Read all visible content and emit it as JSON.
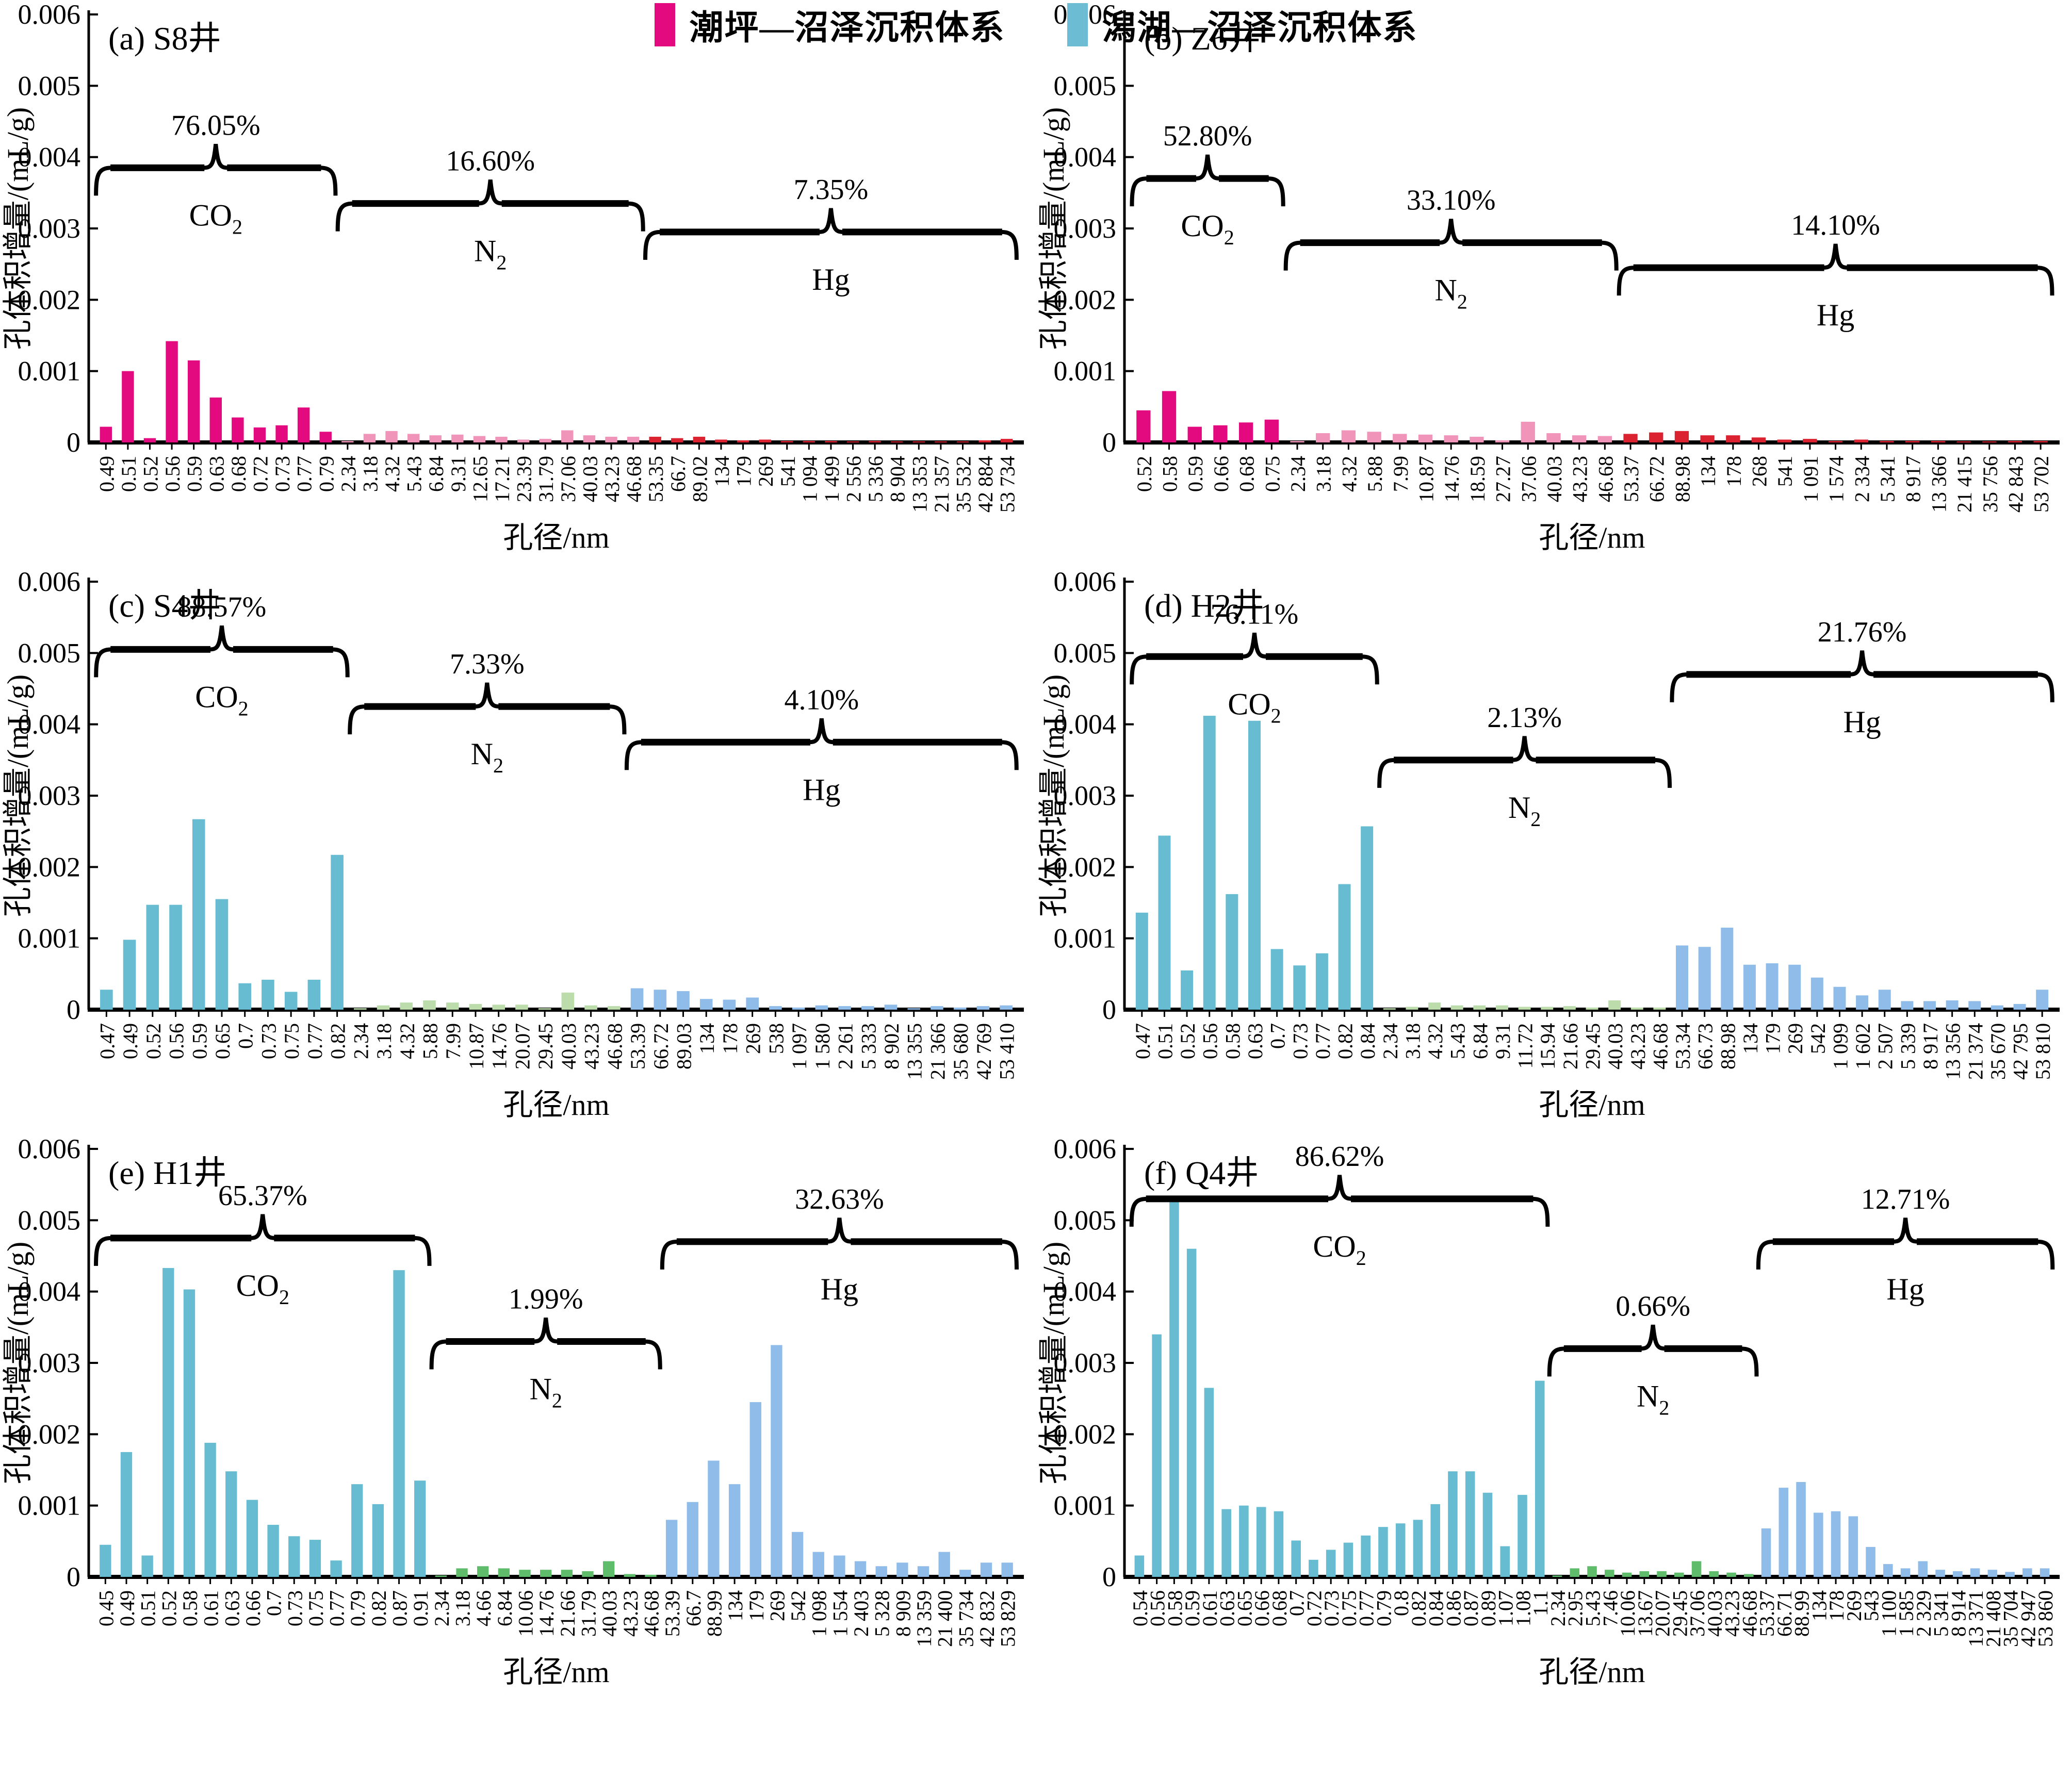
{
  "figure": {
    "ylabel": "孔体积增量/(mL/g)",
    "xlabel": "孔径/nm",
    "background": "#ffffff",
    "axis_color": "#000000"
  },
  "legend": {
    "items": [
      {
        "label": "潮坪—沼泽沉积体系",
        "color": "#E3097E"
      },
      {
        "label": "潟湖—沼泽沉积体系",
        "color": "#6CBDD4"
      }
    ]
  },
  "chart_data": [
    {
      "panel": "a",
      "title": "(a) S8井",
      "type": "bar",
      "xlabel": "孔径/nm",
      "ylabel": "孔体积增量/(mL/g)",
      "ylim": [
        0,
        0.006
      ],
      "yticks": [
        0,
        0.001,
        0.002,
        0.003,
        0.004,
        0.005,
        0.006
      ],
      "ytick_labels": [
        "0",
        "0.001",
        "0.002",
        "0.003",
        "0.004",
        "0.005",
        "0.006"
      ],
      "categories": [
        "0.49",
        "0.51",
        "0.52",
        "0.56",
        "0.59",
        "0.63",
        "0.68",
        "0.72",
        "0.73",
        "0.77",
        "0.79",
        "2.34",
        "3.18",
        "4.32",
        "5.43",
        "6.84",
        "9.31",
        "12.65",
        "17.21",
        "23.39",
        "31.79",
        "37.06",
        "40.03",
        "43.23",
        "46.68",
        "53.35",
        "66.7",
        "89.02",
        "134",
        "179",
        "269",
        "541",
        "1 094",
        "1 499",
        "2 556",
        "5 336",
        "8 904",
        "13 353",
        "21 357",
        "35 532",
        "42 884",
        "53 734"
      ],
      "values": [
        0.00022,
        0.001,
        6e-05,
        0.00142,
        0.00115,
        0.00063,
        0.00035,
        0.00021,
        0.00024,
        0.00049,
        0.00015,
        2e-05,
        0.00012,
        0.00016,
        0.00012,
        0.0001,
        0.00011,
        9e-05,
        8e-05,
        4e-05,
        5e-05,
        0.00017,
        0.0001,
        8e-05,
        8e-05,
        8e-05,
        6e-05,
        8e-05,
        4e-05,
        3e-05,
        4e-05,
        2e-05,
        2e-05,
        2e-05,
        1e-05,
        2e-05,
        1e-05,
        1e-05,
        1e-05,
        1e-05,
        3e-05,
        5e-05
      ],
      "segments": [
        {
          "gas": "CO2",
          "percent": "76.05%",
          "from": 0,
          "to": 10,
          "bar_color": "#E3097E",
          "brace_y": 0.00385
        },
        {
          "gas": "N2",
          "percent": "16.60%",
          "from": 11,
          "to": 24,
          "bar_color": "#F094BA",
          "brace_y": 0.00335
        },
        {
          "gas": "Hg",
          "percent": "7.35%",
          "from": 25,
          "to": 41,
          "bar_color": "#DB2230",
          "brace_y": 0.00295
        }
      ]
    },
    {
      "panel": "b",
      "title": "(b) Z6井",
      "type": "bar",
      "xlabel": "孔径/nm",
      "ylabel": "孔体积增量/(mL/g)",
      "ylim": [
        0,
        0.006
      ],
      "yticks": [
        0,
        0.001,
        0.002,
        0.003,
        0.004,
        0.005,
        0.006
      ],
      "ytick_labels": [
        "0",
        "0.001",
        "0.002",
        "0.003",
        "0.004",
        "0.005",
        "0.006"
      ],
      "categories": [
        "0.52",
        "0.58",
        "0.59",
        "0.66",
        "0.68",
        "0.75",
        "2.34",
        "3.18",
        "4.32",
        "5.88",
        "7.99",
        "10.87",
        "14.76",
        "18.59",
        "27.27",
        "37.06",
        "40.03",
        "43.23",
        "46.68",
        "53.37",
        "66.72",
        "88.98",
        "134",
        "178",
        "268",
        "541",
        "1 091",
        "1 574",
        "2 334",
        "5 341",
        "8 917",
        "13 366",
        "21 415",
        "35 756",
        "42 843",
        "53 702"
      ],
      "values": [
        0.00045,
        0.00072,
        0.00022,
        0.00024,
        0.00028,
        0.00032,
        2e-05,
        0.00013,
        0.00017,
        0.00015,
        0.00012,
        0.00011,
        0.0001,
        8e-05,
        3e-05,
        0.00029,
        0.00013,
        0.0001,
        9e-05,
        0.00012,
        0.00014,
        0.00016,
        0.0001,
        0.0001,
        7e-05,
        4e-05,
        5e-05,
        2e-05,
        4e-05,
        2e-05,
        2e-05,
        2e-05,
        1e-05,
        1e-05,
        2e-05,
        2e-05
      ],
      "segments": [
        {
          "gas": "CO2",
          "percent": "52.80%",
          "from": 0,
          "to": 5,
          "bar_color": "#E3097E",
          "brace_y": 0.0037
        },
        {
          "gas": "N2",
          "percent": "33.10%",
          "from": 6,
          "to": 18,
          "bar_color": "#F094BA",
          "brace_y": 0.0028
        },
        {
          "gas": "Hg",
          "percent": "14.10%",
          "from": 19,
          "to": 35,
          "bar_color": "#DB2230",
          "brace_y": 0.00245
        }
      ]
    },
    {
      "panel": "c",
      "title": "(c) S4井",
      "type": "bar",
      "xlabel": "孔径/nm",
      "ylabel": "孔体积增量/(mL/g)",
      "ylim": [
        0,
        0.006
      ],
      "yticks": [
        0,
        0.001,
        0.002,
        0.003,
        0.004,
        0.005,
        0.006
      ],
      "ytick_labels": [
        "0",
        "0.001",
        "0.002",
        "0.003",
        "0.004",
        "0.005",
        "0.006"
      ],
      "categories": [
        "0.47",
        "0.49",
        "0.52",
        "0.56",
        "0.59",
        "0.65",
        "0.7",
        "0.73",
        "0.75",
        "0.77",
        "0.82",
        "2.34",
        "3.18",
        "4.32",
        "5.88",
        "7.99",
        "10.87",
        "14.76",
        "20.07",
        "29.45",
        "40.03",
        "43.23",
        "46.68",
        "53.39",
        "66.72",
        "89.03",
        "134",
        "178",
        "269",
        "538",
        "1 097",
        "1 580",
        "2 261",
        "5 333",
        "8 902",
        "13 355",
        "21 366",
        "35 680",
        "42 769",
        "53 410"
      ],
      "values": [
        0.00028,
        0.00098,
        0.00147,
        0.00147,
        0.00267,
        0.00155,
        0.00037,
        0.00042,
        0.00025,
        0.00042,
        0.00217,
        2e-05,
        6e-05,
        0.0001,
        0.00013,
        0.0001,
        8e-05,
        7e-05,
        7e-05,
        2e-05,
        0.00024,
        6e-05,
        5e-05,
        0.0003,
        0.00028,
        0.00026,
        0.00015,
        0.00014,
        0.00017,
        5e-05,
        3e-05,
        6e-05,
        5e-05,
        5e-05,
        7e-05,
        2e-05,
        5e-05,
        3e-05,
        5e-05,
        6e-05
      ],
      "segments": [
        {
          "gas": "CO2",
          "percent": "88.57%",
          "from": 0,
          "to": 10,
          "bar_color": "#67BCD2",
          "brace_y": 0.00505
        },
        {
          "gas": "N2",
          "percent": "7.33%",
          "from": 11,
          "to": 22,
          "bar_color": "#BCDCAC",
          "brace_y": 0.00425
        },
        {
          "gas": "Hg",
          "percent": "4.10%",
          "from": 23,
          "to": 39,
          "bar_color": "#8FBCE8",
          "brace_y": 0.00375
        }
      ]
    },
    {
      "panel": "d",
      "title": "(d) H2井",
      "type": "bar",
      "xlabel": "孔径/nm",
      "ylabel": "孔体积增量/(mL/g)",
      "ylim": [
        0,
        0.006
      ],
      "yticks": [
        0,
        0.001,
        0.002,
        0.003,
        0.004,
        0.005,
        0.006
      ],
      "ytick_labels": [
        "0",
        "0.001",
        "0.002",
        "0.003",
        "0.004",
        "0.005",
        "0.006"
      ],
      "categories": [
        "0.47",
        "0.51",
        "0.52",
        "0.56",
        "0.58",
        "0.63",
        "0.7",
        "0.73",
        "0.77",
        "0.82",
        "0.84",
        "2.34",
        "3.18",
        "4.32",
        "5.43",
        "6.84",
        "9.31",
        "11.72",
        "15.94",
        "21.66",
        "29.45",
        "40.03",
        "43.23",
        "46.68",
        "53.34",
        "66.73",
        "88.98",
        "134",
        "179",
        "269",
        "542",
        "1 099",
        "1 602",
        "2 507",
        "5 339",
        "8 917",
        "13 356",
        "21 374",
        "35 670",
        "42 795",
        "53 810"
      ],
      "values": [
        0.00136,
        0.00244,
        0.00055,
        0.00412,
        0.00162,
        0.00405,
        0.00085,
        0.00062,
        0.00079,
        0.00176,
        0.00257,
        2e-05,
        4e-05,
        0.0001,
        6e-05,
        6e-05,
        6e-05,
        4e-05,
        4e-05,
        5e-05,
        3e-05,
        0.00013,
        3e-05,
        3e-05,
        0.0009,
        0.00088,
        0.00115,
        0.00063,
        0.00065,
        0.00063,
        0.00045,
        0.00032,
        0.0002,
        0.00028,
        0.00012,
        0.00012,
        0.00013,
        0.00012,
        6e-05,
        8e-05,
        0.00028
      ],
      "segments": [
        {
          "gas": "CO2",
          "percent": "76.11%",
          "from": 0,
          "to": 10,
          "bar_color": "#67BCD2",
          "brace_y": 0.00495
        },
        {
          "gas": "N2",
          "percent": "2.13%",
          "from": 11,
          "to": 23,
          "bar_color": "#BCDCAC",
          "brace_y": 0.0035
        },
        {
          "gas": "Hg",
          "percent": "21.76%",
          "from": 24,
          "to": 40,
          "bar_color": "#8FBCE8",
          "brace_y": 0.0047
        }
      ]
    },
    {
      "panel": "e",
      "title": "(e) H1井",
      "type": "bar",
      "xlabel": "孔径/nm",
      "ylabel": "孔体积增量/(mL/g)",
      "ylim": [
        0,
        0.006
      ],
      "yticks": [
        0,
        0.001,
        0.002,
        0.003,
        0.004,
        0.005,
        0.006
      ],
      "ytick_labels": [
        "0",
        "0.001",
        "0.002",
        "0.003",
        "0.004",
        "0.005",
        "0.006"
      ],
      "categories": [
        "0.45",
        "0.49",
        "0.51",
        "0.52",
        "0.58",
        "0.61",
        "0.63",
        "0.66",
        "0.7",
        "0.73",
        "0.75",
        "0.77",
        "0.79",
        "0.82",
        "0.87",
        "0.91",
        "2.34",
        "3.18",
        "4.66",
        "6.84",
        "10.06",
        "14.76",
        "21.66",
        "31.79",
        "40.03",
        "43.23",
        "46.68",
        "53.39",
        "66.7",
        "88.99",
        "134",
        "179",
        "269",
        "542",
        "1 098",
        "1 554",
        "2 403",
        "5 328",
        "8 909",
        "13 359",
        "21 400",
        "35 734",
        "42 832",
        "53 829"
      ],
      "values": [
        0.00045,
        0.00175,
        0.0003,
        0.00433,
        0.00403,
        0.00188,
        0.00148,
        0.00108,
        0.00073,
        0.00057,
        0.00052,
        0.00023,
        0.0013,
        0.00102,
        0.0043,
        0.00135,
        2e-05,
        0.00012,
        0.00015,
        0.00012,
        0.0001,
        0.0001,
        0.0001,
        8e-05,
        0.00022,
        4e-05,
        3e-05,
        0.0008,
        0.00105,
        0.00163,
        0.0013,
        0.00245,
        0.00325,
        0.00063,
        0.00035,
        0.0003,
        0.00022,
        0.00015,
        0.0002,
        0.00015,
        0.00035,
        0.0001,
        0.0002,
        0.0002
      ],
      "segments": [
        {
          "gas": "CO2",
          "percent": "65.37%",
          "from": 0,
          "to": 15,
          "bar_color": "#67BCD2",
          "brace_y": 0.00475
        },
        {
          "gas": "N2",
          "percent": "1.99%",
          "from": 16,
          "to": 26,
          "bar_color": "#5FBC6B",
          "brace_y": 0.0033
        },
        {
          "gas": "Hg",
          "percent": "32.63%",
          "from": 27,
          "to": 43,
          "bar_color": "#8FBCE8",
          "brace_y": 0.0047
        }
      ]
    },
    {
      "panel": "f",
      "title": "(f) Q4井",
      "type": "bar",
      "xlabel": "孔径/nm",
      "ylabel": "孔体积增量/(mL/g)",
      "ylim": [
        0,
        0.006
      ],
      "yticks": [
        0,
        0.001,
        0.002,
        0.003,
        0.004,
        0.005,
        0.006
      ],
      "ytick_labels": [
        "0",
        "0.001",
        "0.002",
        "0.003",
        "0.004",
        "0.005",
        "0.006"
      ],
      "categories": [
        "0.54",
        "0.56",
        "0.58",
        "0.59",
        "0.61",
        "0.63",
        "0.65",
        "0.66",
        "0.68",
        "0.7",
        "0.72",
        "0.73",
        "0.75",
        "0.77",
        "0.79",
        "0.8",
        "0.82",
        "0.84",
        "0.86",
        "0.87",
        "0.89",
        "1.07",
        "1.08",
        "1.1",
        "2.34",
        "2.95",
        "5.43",
        "7.46",
        "10.06",
        "13.67",
        "20.07",
        "29.45",
        "37.06",
        "40.03",
        "43.23",
        "46.68",
        "53.37",
        "66.71",
        "88.99",
        "134",
        "178",
        "269",
        "543",
        "1 100",
        "1 585",
        "2 329",
        "5 341",
        "8 914",
        "13 371",
        "21 408",
        "35 704",
        "42 947",
        "53 860"
      ],
      "values": [
        0.0003,
        0.0034,
        0.0053,
        0.0046,
        0.00265,
        0.00095,
        0.001,
        0.00098,
        0.00092,
        0.00051,
        0.00024,
        0.00038,
        0.00048,
        0.00058,
        0.0007,
        0.00075,
        0.0008,
        0.00102,
        0.00148,
        0.00148,
        0.00118,
        0.00043,
        0.00115,
        0.00275,
        2e-05,
        0.00012,
        0.00015,
        0.0001,
        6e-05,
        8e-05,
        8e-05,
        6e-05,
        0.00022,
        8e-05,
        6e-05,
        4e-05,
        0.00068,
        0.00125,
        0.00133,
        0.0009,
        0.00092,
        0.00085,
        0.00042,
        0.00018,
        0.00012,
        0.00022,
        0.0001,
        8e-05,
        0.00012,
        0.0001,
        7e-05,
        0.00012,
        0.00012
      ],
      "segments": [
        {
          "gas": "CO2",
          "percent": "86.62%",
          "from": 0,
          "to": 23,
          "bar_color": "#67BCD2",
          "brace_y": 0.0053
        },
        {
          "gas": "N2",
          "percent": "0.66%",
          "from": 24,
          "to": 35,
          "bar_color": "#5FBC6B",
          "brace_y": 0.0032
        },
        {
          "gas": "Hg",
          "percent": "12.71%",
          "from": 36,
          "to": 52,
          "bar_color": "#8FBCE8",
          "brace_y": 0.0047
        }
      ]
    }
  ]
}
